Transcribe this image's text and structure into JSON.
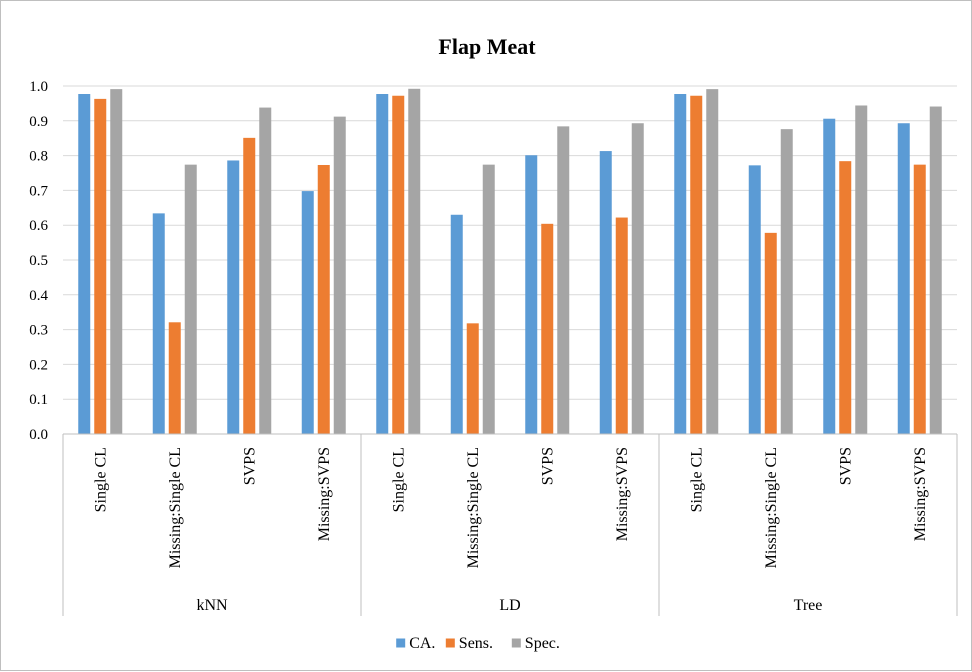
{
  "chart_data": {
    "type": "bar",
    "title": "Flap Meat",
    "xlabel": "",
    "ylabel": "",
    "ylim": [
      0,
      1.0
    ],
    "y_ticks": [
      "0.0",
      "0.1",
      "0.2",
      "0.3",
      "0.4",
      "0.5",
      "0.6",
      "0.7",
      "0.8",
      "0.9",
      "1.0"
    ],
    "grid": true,
    "legend_position": "bottom",
    "groups": [
      {
        "label": "kNN",
        "categories": [
          "Single CL",
          "Missing:Single CL",
          "SVPS",
          "Missing:SVPS"
        ]
      },
      {
        "label": "LD",
        "categories": [
          "Single CL",
          "Missing:Single CL",
          "SVPS",
          "Missing:SVPS"
        ]
      },
      {
        "label": "Tree",
        "categories": [
          "Single CL",
          "Missing:Single CL",
          "SVPS",
          "Missing:SVPS"
        ]
      }
    ],
    "series": [
      {
        "name": "CA.",
        "color": "#5b9bd5",
        "values": [
          0.977,
          0.634,
          0.786,
          0.698,
          0.977,
          0.63,
          0.801,
          0.813,
          0.977,
          0.772,
          0.906,
          0.893
        ]
      },
      {
        "name": "Sens.",
        "color": "#ed7d31",
        "values": [
          0.963,
          0.321,
          0.851,
          0.773,
          0.972,
          0.318,
          0.604,
          0.622,
          0.972,
          0.578,
          0.784,
          0.774
        ]
      },
      {
        "name": "Spec.",
        "color": "#a5a5a5",
        "values": [
          0.991,
          0.774,
          0.938,
          0.912,
          0.992,
          0.774,
          0.884,
          0.893,
          0.991,
          0.876,
          0.944,
          0.941
        ]
      }
    ]
  }
}
